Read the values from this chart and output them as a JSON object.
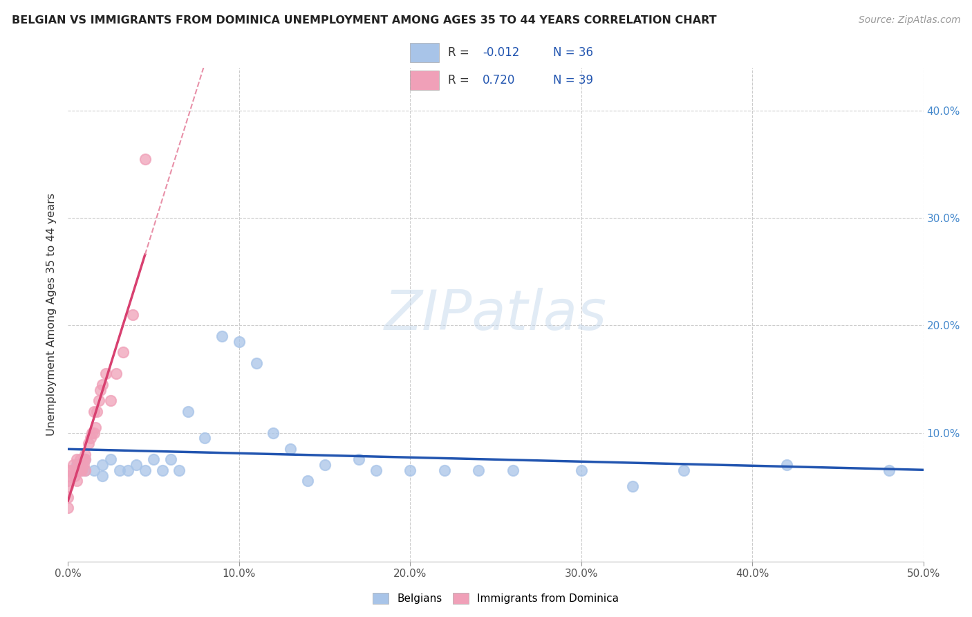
{
  "title": "BELGIAN VS IMMIGRANTS FROM DOMINICA UNEMPLOYMENT AMONG AGES 35 TO 44 YEARS CORRELATION CHART",
  "source": "Source: ZipAtlas.com",
  "ylabel": "Unemployment Among Ages 35 to 44 years",
  "xlim": [
    0.0,
    0.5
  ],
  "ylim": [
    -0.02,
    0.44
  ],
  "xticks": [
    0.0,
    0.1,
    0.2,
    0.3,
    0.4,
    0.5
  ],
  "xtick_labels": [
    "0.0%",
    "10.0%",
    "20.0%",
    "30.0%",
    "40.0%",
    "50.0%"
  ],
  "yticks": [
    0.0,
    0.1,
    0.2,
    0.3,
    0.4
  ],
  "ytick_labels_right": [
    "",
    "10.0%",
    "20.0%",
    "30.0%",
    "40.0%"
  ],
  "belgians_color": "#a8c4e8",
  "dominica_color": "#f0a0b8",
  "belgians_line_color": "#2255b0",
  "dominica_line_color": "#d84070",
  "dominica_line_dashed_color": "#e890a8",
  "legend_R_color": "#2255b0",
  "watermark": "ZIPatlas",
  "R_belgian": -0.012,
  "N_belgian": 36,
  "R_dominica": 0.72,
  "N_dominica": 39,
  "belgians_x": [
    0.005,
    0.008,
    0.01,
    0.01,
    0.015,
    0.02,
    0.02,
    0.025,
    0.03,
    0.035,
    0.04,
    0.045,
    0.05,
    0.055,
    0.06,
    0.065,
    0.07,
    0.08,
    0.09,
    0.1,
    0.11,
    0.12,
    0.13,
    0.14,
    0.15,
    0.17,
    0.18,
    0.2,
    0.22,
    0.24,
    0.26,
    0.3,
    0.33,
    0.36,
    0.42,
    0.48
  ],
  "belgians_y": [
    0.07,
    0.065,
    0.075,
    0.065,
    0.065,
    0.07,
    0.06,
    0.075,
    0.065,
    0.065,
    0.07,
    0.065,
    0.075,
    0.065,
    0.075,
    0.065,
    0.12,
    0.095,
    0.19,
    0.185,
    0.165,
    0.1,
    0.085,
    0.055,
    0.07,
    0.075,
    0.065,
    0.065,
    0.065,
    0.065,
    0.065,
    0.065,
    0.05,
    0.065,
    0.07,
    0.065
  ],
  "dominica_x": [
    0.0,
    0.0,
    0.0,
    0.0,
    0.0,
    0.0,
    0.002,
    0.003,
    0.004,
    0.005,
    0.005,
    0.005,
    0.006,
    0.006,
    0.007,
    0.007,
    0.008,
    0.008,
    0.009,
    0.009,
    0.01,
    0.01,
    0.01,
    0.012,
    0.013,
    0.014,
    0.015,
    0.015,
    0.016,
    0.017,
    0.018,
    0.019,
    0.02,
    0.022,
    0.025,
    0.028,
    0.032,
    0.038,
    0.045
  ],
  "dominica_y": [
    0.065,
    0.06,
    0.055,
    0.05,
    0.04,
    0.03,
    0.065,
    0.07,
    0.06,
    0.075,
    0.065,
    0.055,
    0.07,
    0.065,
    0.065,
    0.075,
    0.065,
    0.07,
    0.07,
    0.075,
    0.08,
    0.075,
    0.065,
    0.09,
    0.095,
    0.1,
    0.1,
    0.12,
    0.105,
    0.12,
    0.13,
    0.14,
    0.145,
    0.155,
    0.13,
    0.155,
    0.175,
    0.21,
    0.355
  ]
}
